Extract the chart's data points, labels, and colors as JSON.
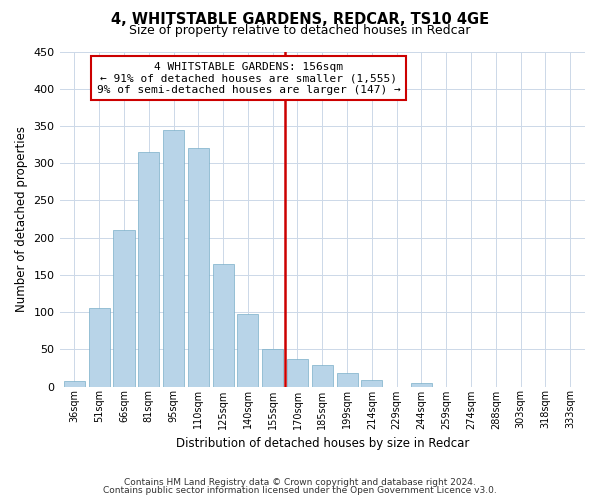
{
  "title": "4, WHITSTABLE GARDENS, REDCAR, TS10 4GE",
  "subtitle": "Size of property relative to detached houses in Redcar",
  "xlabel": "Distribution of detached houses by size in Redcar",
  "ylabel": "Number of detached properties",
  "bar_labels": [
    "36sqm",
    "51sqm",
    "66sqm",
    "81sqm",
    "95sqm",
    "110sqm",
    "125sqm",
    "140sqm",
    "155sqm",
    "170sqm",
    "185sqm",
    "199sqm",
    "214sqm",
    "229sqm",
    "244sqm",
    "259sqm",
    "274sqm",
    "288sqm",
    "303sqm",
    "318sqm",
    "333sqm"
  ],
  "bar_values": [
    7,
    105,
    210,
    315,
    345,
    320,
    165,
    97,
    50,
    37,
    29,
    18,
    9,
    0,
    5,
    0,
    0,
    0,
    0,
    0,
    0
  ],
  "bar_color": "#b8d4e8",
  "bar_edge_color": "#7aafc8",
  "vline_color": "#cc0000",
  "annotation_line1": "4 WHITSTABLE GARDENS: 156sqm",
  "annotation_line2": "← 91% of detached houses are smaller (1,555)",
  "annotation_line3": "9% of semi-detached houses are larger (147) →",
  "annotation_box_edgecolor": "#cc0000",
  "ylim": [
    0,
    450
  ],
  "yticks": [
    0,
    50,
    100,
    150,
    200,
    250,
    300,
    350,
    400,
    450
  ],
  "footer_line1": "Contains HM Land Registry data © Crown copyright and database right 2024.",
  "footer_line2": "Contains public sector information licensed under the Open Government Licence v3.0.",
  "bg_color": "#ffffff",
  "grid_color": "#ccd8e8"
}
